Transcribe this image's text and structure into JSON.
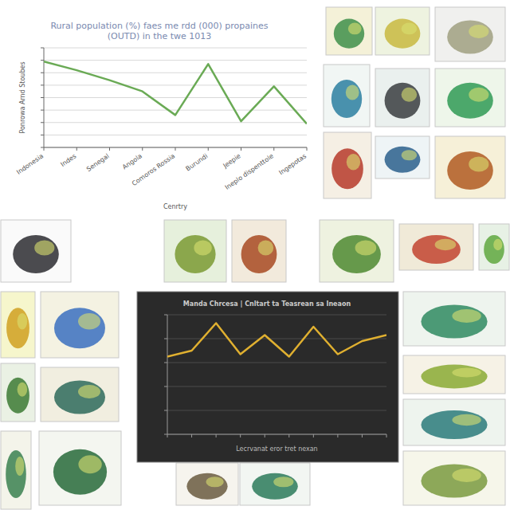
{
  "chart_data": [
    {
      "type": "line",
      "title": "Rural population (%) faes me rdd (000) propaines\n(OUTD) in the twe 1013",
      "x_label": "Cenrtry",
      "y_label": "Ponrowa Arnd Stoubes",
      "categories": [
        "Indonesia",
        "Indes",
        "Senegal",
        "Angola",
        "Comoros Rossia",
        "Burundi",
        "Jeepie",
        "Ineplo dispenttole",
        "Ingepotas"
      ],
      "values": [
        69,
        62,
        54,
        45,
        26,
        67,
        21,
        49,
        19
      ],
      "color": "#6aaa55",
      "ylim": [
        0,
        80
      ],
      "yticks": [
        0,
        10,
        20,
        30,
        40,
        50,
        60,
        70,
        80
      ],
      "grid": true,
      "tick_labels": "x"
    },
    {
      "type": "line",
      "title": "Manda Chrcesa | Cnltart ta Teasrean sa Ineaon",
      "x_label": "Lecrvanat eror tret nexan",
      "categories": [
        null,
        null,
        null,
        null,
        null,
        null,
        null,
        null,
        null,
        null
      ],
      "values": [
        65,
        70,
        93,
        67,
        83,
        65,
        90,
        67,
        78,
        83
      ],
      "color": "#e0b030",
      "ylim": [
        0,
        100
      ],
      "yticks": [
        0,
        20,
        40,
        60,
        80,
        100
      ],
      "grid": true,
      "tick_labels": false
    }
  ]
}
